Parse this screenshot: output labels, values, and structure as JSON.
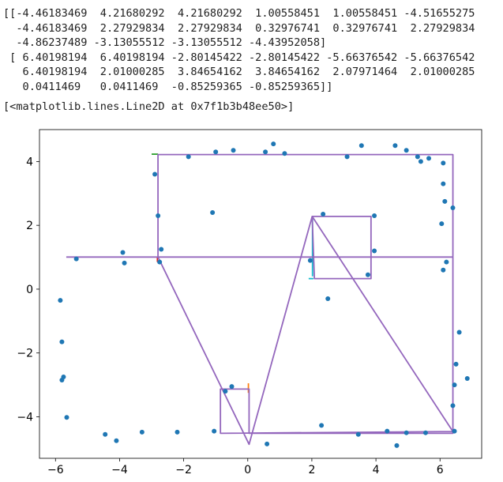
{
  "cell_output": {
    "array_lines": [
      "[[-4.46183469  4.21680292  4.21680292  1.00558451  1.00558451 -4.51655275",
      "  -4.46183469  2.27929834  2.27929834  0.32976741  0.32976741  2.27929834",
      "  -4.86237489 -3.13055512 -3.13055512 -4.43952058]",
      " [ 6.40198194  6.40198194 -2.80145422 -2.80145422 -5.66376542 -5.66376542",
      "   6.40198194  2.01000285  3.84654162  3.84654162  2.07971464  2.01000285",
      "   0.0411469   0.0411469  -0.85259365 -0.85259365]]"
    ],
    "repr": "[<matplotlib.lines.Line2D at 0x7f1b3b48ee50>]"
  },
  "chart_data": {
    "type": "scatter",
    "title": "",
    "xlabel": "",
    "ylabel": "",
    "xlim": [
      -6.5,
      7.3
    ],
    "ylim": [
      -5.3,
      5.0
    ],
    "xticks": [
      -6,
      -4,
      -2,
      0,
      2,
      4,
      6
    ],
    "yticks": [
      4,
      2,
      0,
      -2,
      -4
    ],
    "grid": false,
    "colors": {
      "points": "#1f77b4",
      "line": "#9467bd",
      "seg_green": "#2ca02c",
      "seg_red": "#d62728",
      "seg_orange": "#ff7f0e",
      "seg_cyan": "#17becf"
    },
    "points": [
      [
        -5.85,
        -0.35
      ],
      [
        -5.8,
        -1.65
      ],
      [
        -5.8,
        -2.85
      ],
      [
        -5.75,
        -2.75
      ],
      [
        -5.65,
        -4.02
      ],
      [
        -5.35,
        0.95
      ],
      [
        -3.9,
        1.15
      ],
      [
        -3.85,
        0.82
      ],
      [
        -4.45,
        -4.55
      ],
      [
        -4.1,
        -4.75
      ],
      [
        -3.3,
        -4.48
      ],
      [
        -2.2,
        -4.48
      ],
      [
        -1.05,
        -4.45
      ],
      [
        -2.9,
        3.6
      ],
      [
        -2.8,
        2.3
      ],
      [
        -2.7,
        1.25
      ],
      [
        -2.75,
        0.85
      ],
      [
        -1.85,
        4.15
      ],
      [
        -1.1,
        2.4
      ],
      [
        -1.0,
        4.3
      ],
      [
        -0.45,
        4.35
      ],
      [
        0.55,
        4.3
      ],
      [
        0.8,
        4.55
      ],
      [
        1.15,
        4.25
      ],
      [
        -0.7,
        -3.2
      ],
      [
        -0.5,
        -3.05
      ],
      [
        0.6,
        -4.85
      ],
      [
        1.95,
        0.9
      ],
      [
        2.35,
        2.35
      ],
      [
        2.5,
        -0.3
      ],
      [
        2.3,
        -4.27
      ],
      [
        3.1,
        4.15
      ],
      [
        3.55,
        4.5
      ],
      [
        3.75,
        0.45
      ],
      [
        3.95,
        2.3
      ],
      [
        3.95,
        1.2
      ],
      [
        3.45,
        -4.55
      ],
      [
        4.35,
        -4.45
      ],
      [
        4.6,
        4.5
      ],
      [
        4.95,
        4.35
      ],
      [
        5.3,
        4.15
      ],
      [
        5.4,
        4.0
      ],
      [
        5.65,
        4.1
      ],
      [
        6.1,
        3.95
      ],
      [
        6.1,
        3.3
      ],
      [
        6.15,
        2.75
      ],
      [
        6.05,
        2.05
      ],
      [
        6.4,
        2.55
      ],
      [
        6.2,
        0.85
      ],
      [
        6.1,
        0.6
      ],
      [
        4.65,
        -4.9
      ],
      [
        4.95,
        -4.5
      ],
      [
        5.55,
        -4.5
      ],
      [
        6.6,
        -1.35
      ],
      [
        6.5,
        -2.35
      ],
      [
        6.45,
        -3.0
      ],
      [
        6.4,
        -3.65
      ],
      [
        6.45,
        -4.45
      ],
      [
        6.85,
        -2.8
      ]
    ],
    "line_x": [
      -5.66376542,
      6.40198194,
      6.40198194,
      0.0411469,
      0.0411469,
      -0.85259365,
      -0.85259365,
      6.40198194,
      2.01000285,
      2.07971464,
      3.84654162,
      3.84654162,
      2.07971464,
      2.01000285,
      0.0411469,
      -2.80145422,
      -2.80145422,
      6.40198194,
      6.40198194
    ],
    "line_y": [
      1.00558451,
      1.00558451,
      -4.51655275,
      -4.51655275,
      -3.13055512,
      -3.13055512,
      -4.51655275,
      -4.46183469,
      2.27929834,
      2.27929834,
      2.27929834,
      0.32976741,
      0.32976741,
      2.27929834,
      -4.86237489,
      1.00558451,
      4.21680292,
      4.21680292,
      -4.46183469
    ],
    "extra_segments": [
      {
        "x": [
          -3.0,
          -2.8
        ],
        "y": [
          4.23,
          4.23
        ],
        "color": "seg_green"
      },
      {
        "x": [
          -2.82,
          -2.82
        ],
        "y": [
          0.85,
          1.02
        ],
        "color": "seg_red"
      },
      {
        "x": [
          0.02,
          0.02
        ],
        "y": [
          -3.25,
          -2.95
        ],
        "color": "seg_orange"
      },
      {
        "x": [
          1.9,
          2.05
        ],
        "y": [
          0.33,
          0.33
        ],
        "color": "seg_cyan"
      },
      {
        "x": [
          2.02,
          2.02
        ],
        "y": [
          0.4,
          2.25
        ],
        "color": "seg_cyan"
      }
    ]
  }
}
